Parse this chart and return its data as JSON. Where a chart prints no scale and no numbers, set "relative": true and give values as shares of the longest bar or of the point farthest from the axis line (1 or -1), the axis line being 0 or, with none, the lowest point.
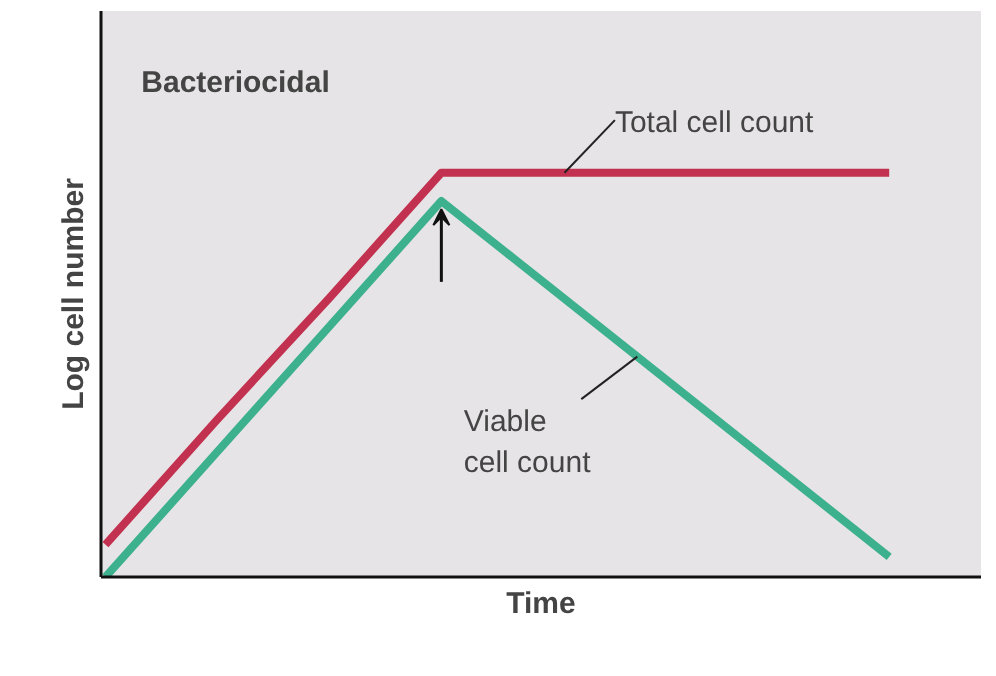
{
  "chart_data": {
    "type": "line",
    "relative": true,
    "title": "Bacteriocidal",
    "xlabel": "Time",
    "ylabel": "Log cell number",
    "categories": [
      null,
      null,
      null,
      null,
      null,
      null,
      null,
      null
    ],
    "series": [
      {
        "name": "Total cell count",
        "color": "#c2314f",
        "values": [
          0.08,
          0.39,
          0.69,
          1,
          1,
          1,
          1,
          1
        ]
      },
      {
        "name": "Viable cell count",
        "color": "#3db08d",
        "values": [
          0,
          0.31,
          0.62,
          0.93,
          0.71,
          0.49,
          0.27,
          0.05
        ]
      }
    ]
  }
}
